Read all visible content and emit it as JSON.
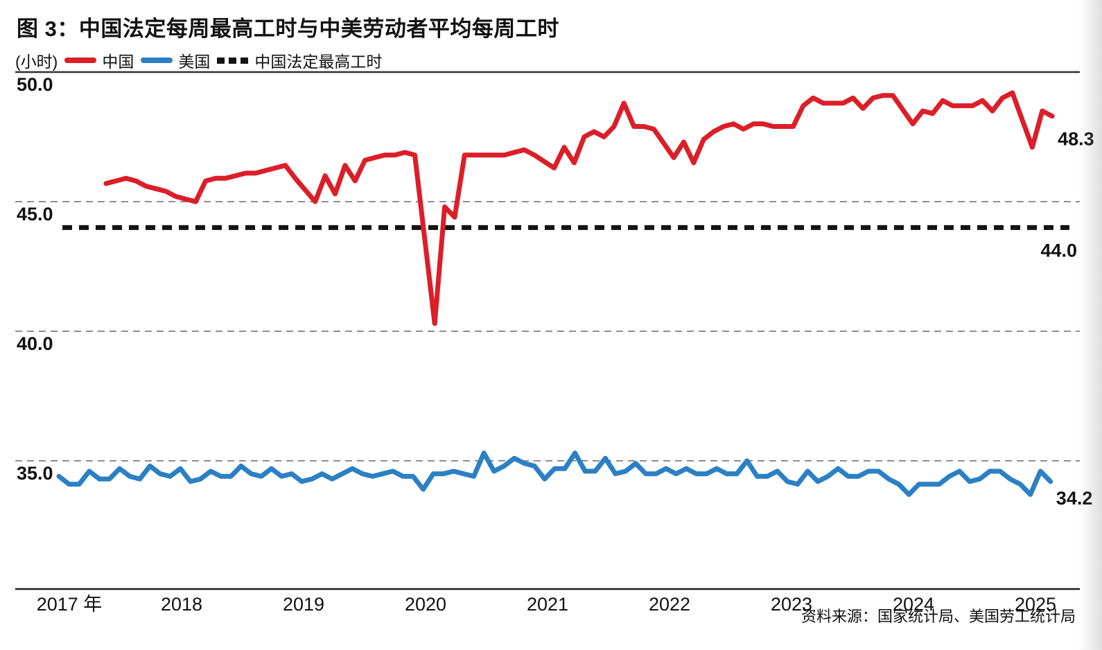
{
  "header": {
    "title": "图 3：中国法定每周最高工时与中美劳动者平均每周工时"
  },
  "source_note": "资料来源：国家统计局、美国劳工统计局",
  "chart_data": {
    "type": "line",
    "title": "图 3：中国法定每周最高工时与中美劳动者平均每周工时",
    "unit_label": "(小时)",
    "legend_position": "top-left",
    "grid": "horizontal-dashed",
    "ylim": [
      32.8,
      50
    ],
    "y_axis": {
      "ticks": [
        {
          "label": "50.0",
          "value": 50.0,
          "line": "solid"
        },
        {
          "label": "45.0",
          "value": 45.0,
          "line": "dashed"
        },
        {
          "label": "40.0",
          "value": 40.0,
          "line": "dashed"
        },
        {
          "label": "35.0",
          "value": 35.0,
          "line": "dashed"
        }
      ]
    },
    "x_axis": {
      "ticks": [
        "2017 年",
        "2018",
        "2019",
        "2020",
        "2021",
        "2022",
        "2023",
        "2024",
        "2025"
      ]
    },
    "legend": [
      {
        "label": "中国",
        "color": "#dc1e28",
        "style": "solid"
      },
      {
        "label": "美国",
        "color": "#2b80c4",
        "style": "solid"
      },
      {
        "label": "中国法定最高工时",
        "color": "#141414",
        "style": "dotted"
      }
    ],
    "statutory_line": {
      "label": "中国法定最高工时",
      "value": 44.0,
      "annotation": "44.0",
      "color": "#141414"
    },
    "annotations": {
      "china_end": "48.3",
      "usa_end": "34.2",
      "statutory": "44.0"
    },
    "series": [
      {
        "name": "中国",
        "color": "#dc1e28",
        "unit": "小时",
        "points": [
          [
            "2017-05",
            45.7
          ],
          [
            "2017-06",
            45.8
          ],
          [
            "2017-07",
            45.9
          ],
          [
            "2017-08",
            45.8
          ],
          [
            "2017-09",
            45.6
          ],
          [
            "2017-10",
            45.5
          ],
          [
            "2017-11",
            45.4
          ],
          [
            "2017-12",
            45.2
          ],
          [
            "2018-02",
            45.0
          ],
          [
            "2018-03",
            45.8
          ],
          [
            "2018-04",
            45.9
          ],
          [
            "2018-05",
            45.9
          ],
          [
            "2018-06",
            46.0
          ],
          [
            "2018-07",
            46.1
          ],
          [
            "2018-08",
            46.1
          ],
          [
            "2018-09",
            46.2
          ],
          [
            "2018-10",
            46.3
          ],
          [
            "2018-11",
            46.4
          ],
          [
            "2018-12",
            45.9
          ],
          [
            "2019-02",
            45.0
          ],
          [
            "2019-03",
            46.0
          ],
          [
            "2019-04",
            45.3
          ],
          [
            "2019-05",
            46.4
          ],
          [
            "2019-06",
            45.8
          ],
          [
            "2019-07",
            46.6
          ],
          [
            "2019-08",
            46.7
          ],
          [
            "2019-09",
            46.8
          ],
          [
            "2019-10",
            46.8
          ],
          [
            "2019-11",
            46.9
          ],
          [
            "2019-12",
            46.8
          ],
          [
            "2020-02",
            40.3
          ],
          [
            "2020-03",
            44.8
          ],
          [
            "2020-04",
            44.4
          ],
          [
            "2020-05",
            46.8
          ],
          [
            "2020-06",
            46.8
          ],
          [
            "2020-07",
            46.8
          ],
          [
            "2020-08",
            46.8
          ],
          [
            "2020-09",
            46.8
          ],
          [
            "2020-10",
            46.9
          ],
          [
            "2020-11",
            47.0
          ],
          [
            "2020-12",
            46.8
          ],
          [
            "2021-02",
            46.3
          ],
          [
            "2021-03",
            47.1
          ],
          [
            "2021-04",
            46.5
          ],
          [
            "2021-05",
            47.5
          ],
          [
            "2021-06",
            47.7
          ],
          [
            "2021-07",
            47.5
          ],
          [
            "2021-08",
            47.9
          ],
          [
            "2021-09",
            48.8
          ],
          [
            "2021-10",
            47.9
          ],
          [
            "2021-11",
            47.9
          ],
          [
            "2021-12",
            47.8
          ],
          [
            "2022-02",
            46.7
          ],
          [
            "2022-03",
            47.3
          ],
          [
            "2022-04",
            46.5
          ],
          [
            "2022-05",
            47.4
          ],
          [
            "2022-06",
            47.7
          ],
          [
            "2022-07",
            47.9
          ],
          [
            "2022-08",
            48.0
          ],
          [
            "2022-09",
            47.8
          ],
          [
            "2022-10",
            48.0
          ],
          [
            "2022-11",
            48.0
          ],
          [
            "2022-12",
            47.9
          ],
          [
            "2023-02",
            47.9
          ],
          [
            "2023-03",
            48.7
          ],
          [
            "2023-04",
            49.0
          ],
          [
            "2023-05",
            48.8
          ],
          [
            "2023-06",
            48.8
          ],
          [
            "2023-07",
            48.8
          ],
          [
            "2023-08",
            49.0
          ],
          [
            "2023-09",
            48.6
          ],
          [
            "2023-10",
            49.0
          ],
          [
            "2023-11",
            49.1
          ],
          [
            "2023-12",
            49.1
          ],
          [
            "2024-02",
            48.0
          ],
          [
            "2024-03",
            48.5
          ],
          [
            "2024-04",
            48.4
          ],
          [
            "2024-05",
            48.9
          ],
          [
            "2024-06",
            48.7
          ],
          [
            "2024-07",
            48.7
          ],
          [
            "2024-08",
            48.7
          ],
          [
            "2024-09",
            48.9
          ],
          [
            "2024-10",
            48.5
          ],
          [
            "2024-11",
            49.0
          ],
          [
            "2024-12",
            49.2
          ],
          [
            "2025-02",
            47.1
          ],
          [
            "2025-03",
            48.5
          ],
          [
            "2025-04",
            48.3
          ]
        ]
      },
      {
        "name": "美国",
        "color": "#2b80c4",
        "unit": "小时",
        "points": [
          [
            "2017-01",
            34.4
          ],
          [
            "2017-02",
            34.1
          ],
          [
            "2017-03",
            34.1
          ],
          [
            "2017-04",
            34.6
          ],
          [
            "2017-05",
            34.3
          ],
          [
            "2017-06",
            34.3
          ],
          [
            "2017-07",
            34.7
          ],
          [
            "2017-08",
            34.4
          ],
          [
            "2017-09",
            34.3
          ],
          [
            "2017-10",
            34.8
          ],
          [
            "2017-11",
            34.5
          ],
          [
            "2017-12",
            34.4
          ],
          [
            "2018-01",
            34.7
          ],
          [
            "2018-02",
            34.2
          ],
          [
            "2018-03",
            34.3
          ],
          [
            "2018-04",
            34.6
          ],
          [
            "2018-05",
            34.4
          ],
          [
            "2018-06",
            34.4
          ],
          [
            "2018-07",
            34.8
          ],
          [
            "2018-08",
            34.5
          ],
          [
            "2018-09",
            34.4
          ],
          [
            "2018-10",
            34.7
          ],
          [
            "2018-11",
            34.4
          ],
          [
            "2018-12",
            34.5
          ],
          [
            "2019-01",
            34.2
          ],
          [
            "2019-02",
            34.3
          ],
          [
            "2019-03",
            34.5
          ],
          [
            "2019-04",
            34.3
          ],
          [
            "2019-05",
            34.5
          ],
          [
            "2019-06",
            34.7
          ],
          [
            "2019-07",
            34.5
          ],
          [
            "2019-08",
            34.4
          ],
          [
            "2019-09",
            34.5
          ],
          [
            "2019-10",
            34.6
          ],
          [
            "2019-11",
            34.4
          ],
          [
            "2019-12",
            34.4
          ],
          [
            "2020-01",
            33.9
          ],
          [
            "2020-02",
            34.5
          ],
          [
            "2020-03",
            34.5
          ],
          [
            "2020-04",
            34.6
          ],
          [
            "2020-05",
            34.5
          ],
          [
            "2020-06",
            34.4
          ],
          [
            "2020-07",
            35.3
          ],
          [
            "2020-08",
            34.6
          ],
          [
            "2020-09",
            34.8
          ],
          [
            "2020-10",
            35.1
          ],
          [
            "2020-11",
            34.9
          ],
          [
            "2020-12",
            34.8
          ],
          [
            "2021-01",
            34.3
          ],
          [
            "2021-02",
            34.7
          ],
          [
            "2021-03",
            34.7
          ],
          [
            "2021-04",
            35.3
          ],
          [
            "2021-05",
            34.6
          ],
          [
            "2021-06",
            34.6
          ],
          [
            "2021-07",
            35.1
          ],
          [
            "2021-08",
            34.5
          ],
          [
            "2021-09",
            34.6
          ],
          [
            "2021-10",
            34.9
          ],
          [
            "2021-11",
            34.5
          ],
          [
            "2021-12",
            34.5
          ],
          [
            "2022-01",
            34.7
          ],
          [
            "2022-02",
            34.5
          ],
          [
            "2022-03",
            34.7
          ],
          [
            "2022-04",
            34.5
          ],
          [
            "2022-05",
            34.5
          ],
          [
            "2022-06",
            34.7
          ],
          [
            "2022-07",
            34.5
          ],
          [
            "2022-08",
            34.5
          ],
          [
            "2022-09",
            35.0
          ],
          [
            "2022-10",
            34.4
          ],
          [
            "2022-11",
            34.4
          ],
          [
            "2022-12",
            34.6
          ],
          [
            "2023-01",
            34.2
          ],
          [
            "2023-02",
            34.1
          ],
          [
            "2023-03",
            34.6
          ],
          [
            "2023-04",
            34.2
          ],
          [
            "2023-05",
            34.4
          ],
          [
            "2023-06",
            34.7
          ],
          [
            "2023-07",
            34.4
          ],
          [
            "2023-08",
            34.4
          ],
          [
            "2023-09",
            34.6
          ],
          [
            "2023-10",
            34.6
          ],
          [
            "2023-11",
            34.3
          ],
          [
            "2023-12",
            34.1
          ],
          [
            "2024-01",
            33.7
          ],
          [
            "2024-02",
            34.1
          ],
          [
            "2024-03",
            34.1
          ],
          [
            "2024-04",
            34.1
          ],
          [
            "2024-05",
            34.4
          ],
          [
            "2024-06",
            34.6
          ],
          [
            "2024-07",
            34.2
          ],
          [
            "2024-08",
            34.3
          ],
          [
            "2024-09",
            34.6
          ],
          [
            "2024-10",
            34.6
          ],
          [
            "2024-11",
            34.3
          ],
          [
            "2024-12",
            34.1
          ],
          [
            "2025-01",
            33.7
          ],
          [
            "2025-02",
            34.6
          ],
          [
            "2025-03",
            34.2
          ]
        ]
      }
    ]
  }
}
